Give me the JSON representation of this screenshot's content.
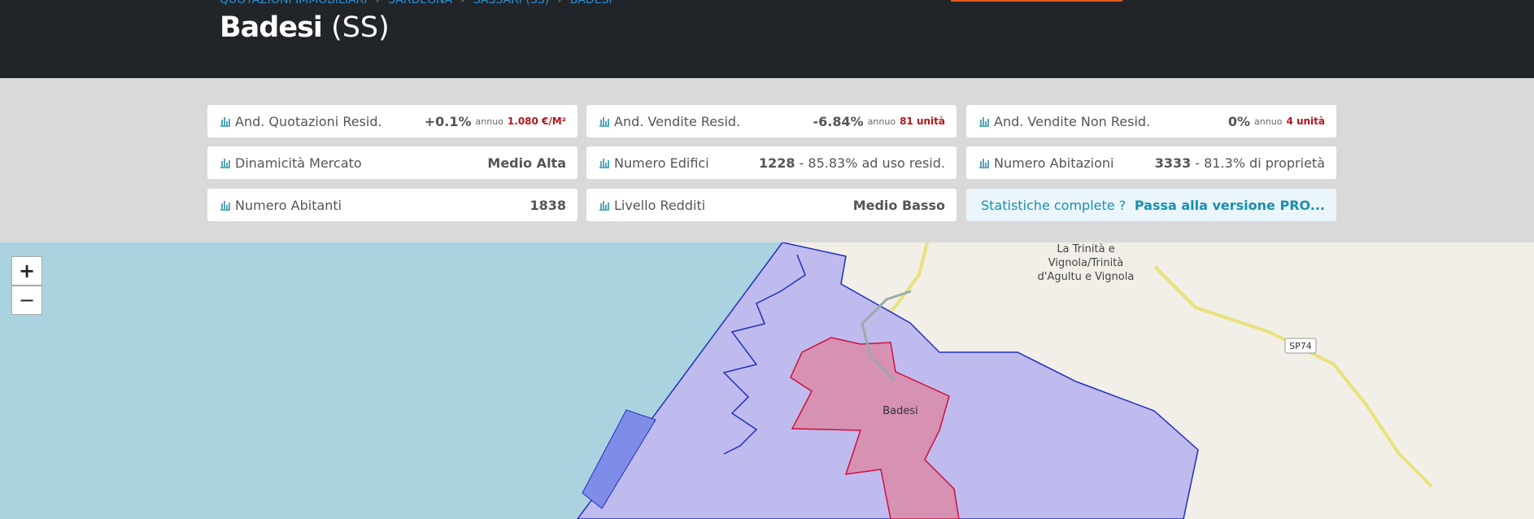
{
  "breadcrumb": [
    "QUOTAZIONI IMMOBILIARI",
    "SARDEGNA",
    "SASSARI (SS)",
    "BADESI"
  ],
  "header": {
    "title": "Badesi",
    "province": "(SS)"
  },
  "cards": [
    {
      "label": "And. Quotazioni Resid.",
      "value": "+0.1%",
      "period": "annuo",
      "extra": "1.080 €/M²"
    },
    {
      "label": "And. Vendite Resid.",
      "value": "-6.84%",
      "period": "annuo",
      "extra": "81 unità"
    },
    {
      "label": "And. Vendite Non Resid.",
      "value": "0%",
      "period": "annuo",
      "extra": "4 unità"
    },
    {
      "label": "Dinamicità Mercato",
      "value": "Medio Alta"
    },
    {
      "label": "Numero Edifici",
      "value": "1228",
      "note": "- 85.83% ad uso resid."
    },
    {
      "label": "Numero Abitazioni",
      "value": "3333",
      "note": "- 81.3% di proprietà"
    },
    {
      "label": "Numero Abitanti",
      "value": "1838"
    },
    {
      "label": "Livello Redditi",
      "value": "Medio Basso"
    },
    {
      "label": "Statistiche complete ?",
      "value": "Passa alla versione PRO..."
    }
  ],
  "map": {
    "zoom_in": "+",
    "zoom_out": "−",
    "place_lines": [
      "La Trinità e",
      "Vignola/Trinità",
      "d'Agultu e Vignola"
    ],
    "town": "Badesi",
    "road": "SP74"
  }
}
